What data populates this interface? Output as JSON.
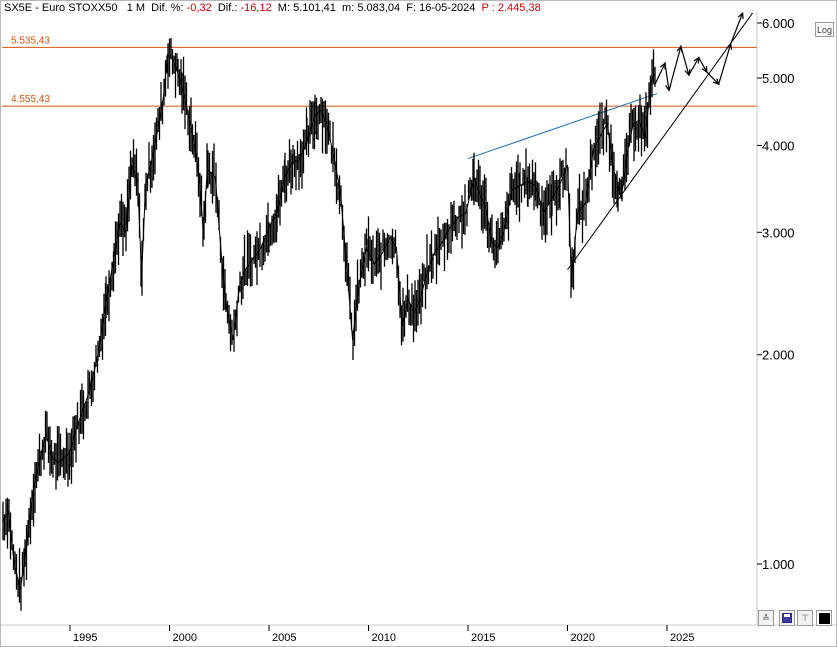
{
  "header": {
    "symbol": "SX5E - Euro STOXX50",
    "interval": "1 M",
    "dif_pct_label": "Dif. %:",
    "dif_pct_value": "-0,32",
    "dif_label": "Dif.:",
    "dif_value": "-16,12",
    "max_label": "M:",
    "max_value": "5.101,41",
    "min_label": "m:",
    "min_value": "5.083,04",
    "date_label": "F:",
    "date_value": "16-05-2024",
    "price_label": "P :",
    "price_value": "2.445,38"
  },
  "controls": {
    "log_label": "Log",
    "btn_a_icon": "double-chevron-down-icon",
    "btn_b_icon": "save-icon",
    "btn_c_icon": "pin-icon",
    "btn_d_icon": "black-square-icon"
  },
  "colors": {
    "level_line": "#d4560f",
    "trend_blue": "#1f6fb5",
    "price": "#000000",
    "negative_text": "#d00000"
  },
  "chart_data": {
    "type": "line",
    "scale": "log",
    "ylim": [
      800,
      6300
    ],
    "xlim": [
      1991.55,
      2029.3
    ],
    "yticks": [
      {
        "value": 6000,
        "label": "6.000"
      },
      {
        "value": 5000,
        "label": "5.000"
      },
      {
        "value": 4000,
        "label": "4.000"
      },
      {
        "value": 3000,
        "label": "3.000"
      },
      {
        "value": 2000,
        "label": "2.000"
      },
      {
        "value": 1000,
        "label": "1.000"
      }
    ],
    "xticks": [
      {
        "value": 1995,
        "label": "1995"
      },
      {
        "value": 2000,
        "label": "2000"
      },
      {
        "value": 2005,
        "label": "2005"
      },
      {
        "value": 2010,
        "label": "2010"
      },
      {
        "value": 2015,
        "label": "2015"
      },
      {
        "value": 2020,
        "label": "2020"
      },
      {
        "value": 2025,
        "label": "2025"
      }
    ],
    "levels": [
      {
        "value": 5535.43,
        "label": "5.535,43"
      },
      {
        "value": 4555.43,
        "label": "4.555,43"
      }
    ],
    "price_series": {
      "x": [
        1991.6,
        1991.9,
        1992.2,
        1992.5,
        1992.7,
        1992.9,
        1993.2,
        1993.5,
        1993.8,
        1994.1,
        1994.4,
        1994.7,
        1995.0,
        1995.3,
        1995.6,
        1996.0,
        1996.4,
        1996.8,
        1997.2,
        1997.5,
        1997.8,
        1998.1,
        1998.4,
        1998.6,
        1998.8,
        1999.1,
        1999.4,
        1999.7,
        1999.9,
        2000.2,
        2000.4,
        2000.6,
        2000.9,
        2001.2,
        2001.5,
        2001.7,
        2001.9,
        2002.3,
        2002.6,
        2002.8,
        2003.2,
        2003.5,
        2003.8,
        2004.2,
        2004.6,
        2005.0,
        2005.4,
        2005.8,
        2006.2,
        2006.5,
        2006.9,
        2007.3,
        2007.6,
        2007.9,
        2008.3,
        2008.6,
        2008.9,
        2009.2,
        2009.5,
        2009.9,
        2010.3,
        2010.7,
        2011.1,
        2011.4,
        2011.7,
        2012.0,
        2012.3,
        2012.6,
        2012.9,
        2013.3,
        2013.7,
        2014.1,
        2014.5,
        2014.9,
        2015.3,
        2015.6,
        2015.9,
        2016.2,
        2016.5,
        2016.8,
        2017.2,
        2017.6,
        2018.0,
        2018.4,
        2018.8,
        2019.2,
        2019.6,
        2020.0,
        2020.2,
        2020.5,
        2020.9,
        2021.3,
        2021.7,
        2022.0,
        2022.3,
        2022.5,
        2022.7,
        2023.0,
        2023.3,
        2023.6,
        2023.9,
        2024.2,
        2024.4
      ],
      "y": [
        1150,
        1190,
        1000,
        920,
        1000,
        1120,
        1300,
        1420,
        1540,
        1420,
        1400,
        1420,
        1450,
        1560,
        1650,
        1780,
        2000,
        2370,
        2750,
        3100,
        3000,
        3750,
        3550,
        2600,
        3500,
        3800,
        4200,
        4700,
        5400,
        5300,
        5100,
        4900,
        4500,
        4100,
        3600,
        3000,
        3700,
        3600,
        2800,
        2400,
        2100,
        2500,
        2650,
        2750,
        2850,
        3050,
        3200,
        3600,
        3800,
        3800,
        4050,
        4400,
        4500,
        4300,
        3800,
        3400,
        2700,
        2100,
        2500,
        2850,
        2700,
        2800,
        2950,
        2850,
        2200,
        2400,
        2300,
        2400,
        2600,
        2800,
        2900,
        3050,
        3150,
        3200,
        3600,
        3400,
        3250,
        2900,
        2850,
        3000,
        3450,
        3500,
        3550,
        3500,
        3200,
        3350,
        3500,
        3750,
        2550,
        3200,
        3300,
        3950,
        4150,
        4300,
        3700,
        3550,
        3350,
        3900,
        4300,
        4350,
        4100,
        4950,
        5080
      ]
    },
    "projection": {
      "x": [
        2024.4,
        2024.9,
        2025.1,
        2025.7,
        2026.1,
        2026.6,
        2027.0,
        2027.6,
        2028.2,
        2028.8
      ],
      "y": [
        4900,
        5250,
        4800,
        5550,
        5050,
        5350,
        5100,
        4900,
        5600,
        6200
      ]
    },
    "support_trend": {
      "x": [
        2020.0,
        2029.3
      ],
      "y": [
        2650,
        6200
      ]
    },
    "resistance_trend": {
      "x": [
        2015.0,
        2024.5
      ],
      "y": [
        3830,
        4750
      ]
    }
  }
}
